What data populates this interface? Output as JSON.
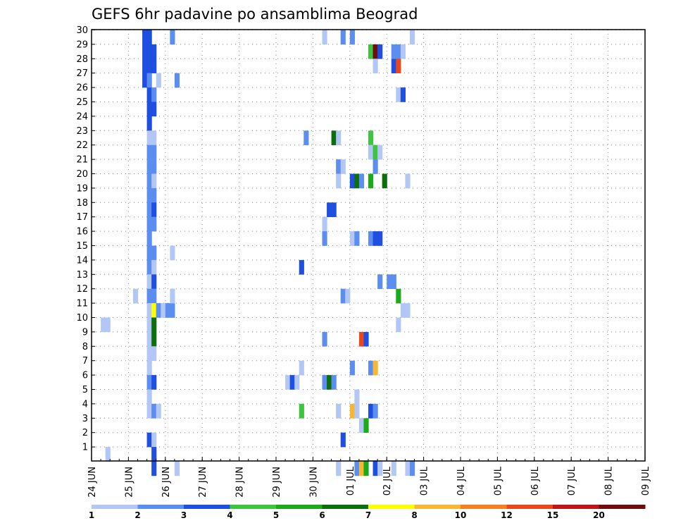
{
  "chart_data": {
    "type": "heatmap",
    "title": "GEFS 6hr padavine po ansamblima Beograd",
    "xlabel": "",
    "ylabel": "",
    "x_tick_labels": [
      "24 JUN",
      "25 JUN",
      "26 JUN",
      "27 JUN",
      "28 JUN",
      "29 JUN",
      "30 JUN",
      "01 JUL",
      "02 JUL",
      "03 JUL",
      "04 JUL",
      "05 JUL",
      "06 JUL",
      "07 JUL",
      "08 JUL",
      "09 JUL"
    ],
    "y_tick_labels": [
      "1",
      "2",
      "3",
      "4",
      "5",
      "6",
      "7",
      "8",
      "9",
      "10",
      "11",
      "12",
      "13",
      "14",
      "15",
      "16",
      "17",
      "18",
      "19",
      "20",
      "21",
      "22",
      "23",
      "24",
      "25",
      "26",
      "27",
      "28",
      "29",
      "30"
    ],
    "x_range_6h_steps": [
      0,
      60
    ],
    "y_range_members": [
      0,
      30
    ],
    "grid": "dotted",
    "legend_position": "bottom",
    "colorbar": {
      "bounds": [
        "1",
        "2",
        "3",
        "4",
        "5",
        "6",
        "7",
        "8",
        "10",
        "12",
        "15",
        "20"
      ],
      "colors": [
        "#b3c7f7",
        "#5b8ef0",
        "#1f4fe0",
        "#3fc43f",
        "#1aaa1a",
        "#0d6e0d",
        "#ffff00",
        "#f7b733",
        "#f58220",
        "#e8481c",
        "#c0141c",
        "#6e0d0d"
      ]
    },
    "cells": [
      [
        11,
        29,
        3
      ],
      [
        11,
        28,
        3
      ],
      [
        11,
        27,
        3
      ],
      [
        11,
        26,
        3
      ],
      [
        12,
        29,
        3
      ],
      [
        12,
        28,
        3
      ],
      [
        12,
        27,
        3
      ],
      [
        12,
        26,
        2
      ],
      [
        12,
        25,
        3
      ],
      [
        12,
        24,
        3
      ],
      [
        12,
        23,
        3
      ],
      [
        12,
        22,
        1
      ],
      [
        12,
        21,
        2
      ],
      [
        12,
        20,
        2
      ],
      [
        12,
        19,
        2
      ],
      [
        12,
        18,
        2
      ],
      [
        12,
        17,
        2
      ],
      [
        12,
        16,
        2
      ],
      [
        12,
        15,
        2
      ],
      [
        12,
        14,
        2
      ],
      [
        12,
        13,
        2
      ],
      [
        12,
        12,
        1
      ],
      [
        12,
        11,
        2
      ],
      [
        12,
        10,
        1
      ],
      [
        12,
        9,
        1
      ],
      [
        12,
        8,
        1
      ],
      [
        12,
        7,
        1
      ],
      [
        12,
        6,
        1
      ],
      [
        12,
        5,
        2
      ],
      [
        12,
        4,
        1
      ],
      [
        12,
        3,
        1
      ],
      [
        12,
        1,
        3
      ],
      [
        13,
        28,
        3
      ],
      [
        13,
        27,
        3
      ],
      [
        13,
        25,
        2
      ],
      [
        13,
        24,
        3
      ],
      [
        13,
        22,
        1
      ],
      [
        13,
        21,
        2
      ],
      [
        13,
        20,
        2
      ],
      [
        13,
        19,
        1
      ],
      [
        13,
        18,
        2
      ],
      [
        13,
        17,
        3
      ],
      [
        13,
        16,
        2
      ],
      [
        13,
        14,
        2
      ],
      [
        13,
        13,
        1
      ],
      [
        13,
        12,
        3
      ],
      [
        13,
        11,
        2
      ],
      [
        13,
        10,
        7
      ],
      [
        13,
        9,
        6
      ],
      [
        13,
        8,
        6
      ],
      [
        13,
        7,
        1
      ],
      [
        13,
        5,
        3
      ],
      [
        13,
        3,
        2
      ],
      [
        13,
        1,
        1
      ],
      [
        13,
        0,
        3
      ],
      [
        13,
        -1,
        3
      ],
      [
        14,
        26,
        1
      ],
      [
        14,
        10,
        2
      ],
      [
        14,
        3,
        1
      ],
      [
        15,
        10,
        1
      ],
      [
        16,
        10,
        2
      ],
      [
        17,
        29,
        2
      ],
      [
        17,
        14,
        1
      ],
      [
        17,
        10,
        2
      ],
      [
        17,
        11,
        1
      ],
      [
        18,
        26,
        2
      ],
      [
        18,
        -1,
        1
      ],
      [
        2,
        9,
        1
      ],
      [
        3,
        9,
        1
      ],
      [
        3,
        0,
        1
      ],
      [
        9,
        11,
        1
      ],
      [
        42,
        5,
        1
      ],
      [
        43,
        5,
        3
      ],
      [
        44,
        5,
        1
      ],
      [
        45,
        13,
        3
      ],
      [
        45,
        6,
        1
      ],
      [
        45,
        3,
        4
      ],
      [
        46,
        22,
        2
      ],
      [
        50,
        29,
        1
      ],
      [
        50,
        16,
        1
      ],
      [
        50,
        15,
        2
      ],
      [
        50,
        8,
        2
      ],
      [
        50,
        5,
        2
      ],
      [
        51,
        5,
        6
      ],
      [
        51,
        17,
        3
      ],
      [
        52,
        5,
        2
      ],
      [
        52,
        17,
        3
      ],
      [
        52,
        22,
        6
      ],
      [
        53,
        22,
        1
      ],
      [
        53,
        20,
        2
      ],
      [
        53,
        19,
        1
      ],
      [
        53,
        -1,
        1
      ],
      [
        53,
        3,
        1
      ],
      [
        54,
        29,
        2
      ],
      [
        54,
        20,
        1
      ],
      [
        54,
        11,
        2
      ],
      [
        54,
        1,
        3
      ],
      [
        55,
        11,
        1
      ],
      [
        56,
        29,
        2
      ],
      [
        56,
        6,
        2
      ],
      [
        56,
        15,
        1
      ],
      [
        56,
        19,
        3
      ],
      [
        56,
        3,
        8
      ],
      [
        57,
        19,
        6
      ],
      [
        57,
        15,
        2
      ],
      [
        57,
        4,
        1
      ],
      [
        57,
        3,
        1
      ],
      [
        57,
        -1,
        2
      ],
      [
        58,
        19,
        2
      ],
      [
        58,
        8,
        10
      ],
      [
        58,
        2,
        1
      ],
      [
        58,
        -1,
        8
      ],
      [
        59,
        8,
        3
      ],
      [
        59,
        2,
        5
      ],
      [
        59,
        -1,
        5
      ],
      [
        60,
        28,
        4
      ],
      [
        60,
        22,
        4
      ],
      [
        60,
        21,
        1
      ],
      [
        60,
        15,
        2
      ],
      [
        60,
        6,
        2
      ],
      [
        60,
        3,
        3
      ],
      [
        60,
        19,
        5
      ],
      [
        61,
        28,
        12
      ],
      [
        61,
        27,
        1
      ],
      [
        61,
        21,
        4
      ],
      [
        61,
        20,
        2
      ],
      [
        61,
        15,
        3
      ],
      [
        61,
        6,
        8
      ],
      [
        61,
        3,
        2
      ],
      [
        61,
        -1,
        3
      ],
      [
        62,
        28,
        3
      ],
      [
        62,
        21,
        1
      ],
      [
        62,
        15,
        3
      ],
      [
        62,
        12,
        2
      ],
      [
        62,
        -1,
        1
      ],
      [
        63,
        19,
        6
      ],
      [
        64,
        12,
        2
      ],
      [
        65,
        27,
        3
      ],
      [
        65,
        28,
        2
      ],
      [
        65,
        12,
        2
      ],
      [
        65,
        -1,
        1
      ],
      [
        66,
        28,
        2
      ],
      [
        66,
        27,
        10
      ],
      [
        66,
        25,
        1
      ],
      [
        66,
        11,
        5
      ],
      [
        66,
        9,
        1
      ],
      [
        67,
        28,
        1
      ],
      [
        67,
        25,
        3
      ],
      [
        67,
        10,
        1
      ],
      [
        68,
        10,
        1
      ],
      [
        68,
        19,
        1
      ],
      [
        68,
        -1,
        1
      ],
      [
        69,
        -1,
        2
      ],
      [
        69,
        29,
        1
      ]
    ]
  }
}
